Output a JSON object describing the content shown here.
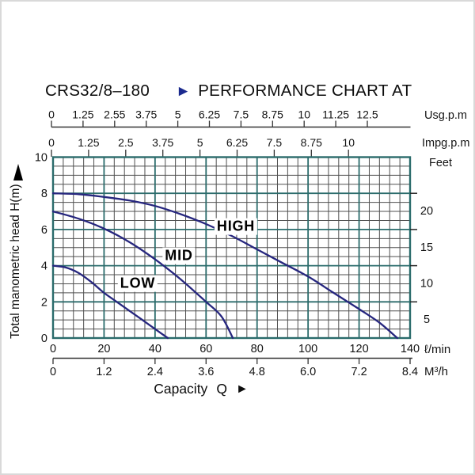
{
  "title": {
    "model": "CRS32/8–180",
    "arrow": "►",
    "text": "PERFORMANCE CHART AT"
  },
  "units": {
    "usgpm": "Usg.p.m",
    "impgpm": "Impg.p.m",
    "feet": "Feet",
    "lmin": "ℓ/min",
    "m3h": "M³/h"
  },
  "y_axis": {
    "title": "Total manometric head H(m)"
  },
  "x_axis": {
    "title": "Capacity",
    "symbol": "Q",
    "arrow": "►"
  },
  "scales": {
    "usgpm_ticks": [
      "0",
      "1.25",
      "2.55",
      "3.75",
      "5",
      "6.25",
      "7.5",
      "8.75",
      "10",
      "11.25",
      "12.5"
    ],
    "impgpm_ticks": [
      "0",
      "1.25",
      "2.5",
      "3.75",
      "5",
      "6.25",
      "7.5",
      "8.75",
      "10"
    ],
    "left_ticks": [
      {
        "label": "10",
        "h": 10
      },
      {
        "label": "8",
        "h": 8
      },
      {
        "label": "6",
        "h": 6
      },
      {
        "label": "4",
        "h": 4
      },
      {
        "label": "2",
        "h": 2
      },
      {
        "label": "0",
        "h": 0
      }
    ],
    "right_tick_marks_h": [
      8,
      6,
      4,
      2
    ],
    "feet_labels": [
      {
        "label": "20",
        "h": 7
      },
      {
        "label": "15",
        "h": 5
      },
      {
        "label": "10",
        "h": 3
      },
      {
        "label": "5",
        "h": 1
      }
    ],
    "lmin_ticks": [
      {
        "label": "0",
        "q": 0
      },
      {
        "label": "20",
        "q": 20
      },
      {
        "label": "40",
        "q": 40
      },
      {
        "label": "60",
        "q": 60
      },
      {
        "label": "80",
        "q": 80
      },
      {
        "label": "100",
        "q": 100
      },
      {
        "label": "120",
        "q": 120
      },
      {
        "label": "140",
        "q": 140
      }
    ],
    "m3h_ticks": [
      {
        "label": "0",
        "q": 0
      },
      {
        "label": "1.2",
        "q": 20
      },
      {
        "label": "2.4",
        "q": 40
      },
      {
        "label": "3.6",
        "q": 60
      },
      {
        "label": "4.8",
        "q": 80
      },
      {
        "label": "6.0",
        "q": 100
      },
      {
        "label": "7.2",
        "q": 120
      },
      {
        "label": "8.4",
        "q": 140
      }
    ]
  },
  "chart_data": {
    "type": "line",
    "title": "CRS32/8–180 PERFORMANCE CHART AT",
    "xlabel": "Capacity Q",
    "ylabel": "Total manometric head H(m)",
    "x_unit_primary": "ℓ/min",
    "x_units_secondary": [
      "M³/h",
      "Usg.p.m",
      "Impg.p.m"
    ],
    "y_unit_primary": "m",
    "y_unit_secondary": "Feet",
    "xlim": [
      0,
      140
    ],
    "ylim": [
      0,
      10
    ],
    "grid": {
      "minor_x_step_lmin": 4,
      "minor_y_step_m": 0.5,
      "major_x_step_lmin": 20,
      "major_y_step_m": 2
    },
    "series": [
      {
        "name": "HIGH",
        "x_lmin": [
          0,
          10,
          20,
          30,
          40,
          50,
          60,
          70,
          80,
          90,
          100,
          110,
          120,
          128,
          135
        ],
        "head_m": [
          8,
          7.95,
          7.8,
          7.6,
          7.3,
          6.85,
          6.3,
          5.65,
          4.9,
          4.15,
          3.4,
          2.5,
          1.6,
          0.85,
          0
        ]
      },
      {
        "name": "MID",
        "x_lmin": [
          0,
          10,
          20,
          30,
          40,
          50,
          60,
          66,
          70.5
        ],
        "head_m": [
          7,
          6.6,
          6.05,
          5.3,
          4.35,
          3.25,
          2.0,
          1.2,
          0
        ]
      },
      {
        "name": "LOW",
        "x_lmin": [
          0,
          5,
          10,
          15,
          20,
          25,
          30,
          35,
          40,
          45
        ],
        "head_m": [
          4,
          3.9,
          3.6,
          3.1,
          2.5,
          2.0,
          1.5,
          1.0,
          0.5,
          0
        ]
      }
    ]
  },
  "colors": {
    "curve": "#26267e",
    "grid_major": "#2a6b6b",
    "grid_minor": "#4f4f4f",
    "axis_line": "#333333",
    "title_arrow": "#1b2a8e",
    "text": "#111111"
  }
}
